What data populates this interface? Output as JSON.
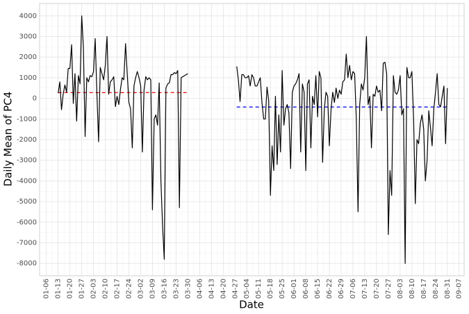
{
  "chart_data": {
    "type": "line",
    "x_label": "Date",
    "y_label": "Daily Mean of PC4",
    "x": [
      "01-13",
      "01-14",
      "01-15",
      "01-16",
      "01-17",
      "01-18",
      "01-19",
      "01-20",
      "01-21",
      "01-22",
      "01-23",
      "01-24",
      "01-25",
      "01-26",
      "01-27",
      "01-28",
      "01-29",
      "01-30",
      "01-31",
      "02-01",
      "02-02",
      "02-03",
      "02-04",
      "02-05",
      "02-06",
      "02-07",
      "02-08",
      "02-09",
      "02-10",
      "02-11",
      "02-12",
      "02-13",
      "02-14",
      "02-15",
      "02-16",
      "02-17",
      "02-18",
      "02-19",
      "02-20",
      "02-21",
      "02-22",
      "02-23",
      "02-24",
      "02-25",
      "02-26",
      "02-27",
      "02-28",
      "02-29",
      "03-01",
      "03-02",
      "03-03",
      "03-04",
      "03-05",
      "03-06",
      "03-07",
      "03-08",
      "03-09",
      "03-10",
      "03-11",
      "03-12",
      "03-13",
      "03-14",
      "03-15",
      "03-16",
      "03-17",
      "03-18",
      "03-19",
      "03-20",
      "03-21",
      "03-22",
      "03-23",
      "03-24",
      "03-25",
      "03-26",
      "03-27",
      "03-28",
      "03-29",
      "03-30",
      "04-14",
      "04-28",
      "04-29",
      "04-30",
      "05-01",
      "05-02",
      "05-03",
      "05-04",
      "05-05",
      "05-06",
      "05-07",
      "05-08",
      "05-09",
      "05-10",
      "05-11",
      "05-12",
      "05-13",
      "05-14",
      "05-15",
      "05-16",
      "05-17",
      "05-18",
      "05-19",
      "05-20",
      "05-21",
      "05-22",
      "05-23",
      "05-24",
      "05-25",
      "05-26",
      "05-27",
      "05-28",
      "05-29",
      "05-30",
      "05-31",
      "06-01",
      "06-02",
      "06-03",
      "06-04",
      "06-05",
      "06-06",
      "06-07",
      "06-08",
      "06-09",
      "06-10",
      "06-11",
      "06-12",
      "06-13",
      "06-14",
      "06-15",
      "06-16",
      "06-17",
      "06-18",
      "06-19",
      "06-20",
      "06-21",
      "06-22",
      "06-23",
      "06-24",
      "06-25",
      "06-26",
      "06-27",
      "06-28",
      "06-29",
      "06-30",
      "07-01",
      "07-02",
      "07-03",
      "07-04",
      "07-05",
      "07-06",
      "07-07",
      "07-08",
      "07-09",
      "07-10",
      "07-11",
      "07-12",
      "07-13",
      "07-14",
      "07-15",
      "07-16",
      "07-17",
      "07-18",
      "07-19",
      "07-20",
      "07-21",
      "07-22",
      "07-23",
      "07-24",
      "07-25",
      "07-26",
      "07-27",
      "07-28",
      "07-29",
      "07-30",
      "07-31",
      "08-01",
      "08-02",
      "08-03",
      "08-04",
      "08-05",
      "08-06",
      "08-07",
      "08-08",
      "08-09",
      "08-10",
      "08-11",
      "08-12",
      "08-13",
      "08-14",
      "08-15",
      "08-16",
      "08-17",
      "08-18",
      "08-19",
      "08-20",
      "08-21",
      "08-22",
      "08-23",
      "08-24",
      "08-25",
      "08-26",
      "08-27",
      "08-28",
      "08-29",
      "08-30",
      "08-31"
    ],
    "series": [
      {
        "color": "#000000",
        "values": [
          250,
          800,
          -550,
          200,
          650,
          300,
          1450,
          1450,
          2600,
          -250,
          1200,
          -1100,
          1100,
          700,
          4000,
          2500,
          -1850,
          1000,
          800,
          1100,
          1050,
          1300,
          2900,
          300,
          -2100,
          1500,
          1200,
          900,
          1600,
          3000,
          200,
          800,
          900,
          1050,
          -400,
          100,
          -300,
          450,
          1000,
          900,
          2650,
          1200,
          -200,
          -500,
          -2400,
          600,
          1000,
          1300,
          1000,
          600,
          -2600,
          400,
          1050,
          900,
          1000,
          900,
          -5400,
          -1000,
          -800,
          -1300,
          750,
          -4000,
          -6200,
          -7800,
          500,
          700,
          750,
          1150,
          1150,
          1250,
          1200,
          1350,
          -5300,
          1000,
          1050,
          1100,
          1150,
          1200,
          null,
          1550,
          900,
          -150,
          1150,
          1150,
          1000,
          1000,
          1100,
          600,
          1150,
          1000,
          600,
          600,
          800,
          1000,
          -200,
          -1000,
          -1000,
          550,
          -100,
          -4700,
          -2300,
          -3500,
          100,
          -3200,
          -800,
          -2600,
          1350,
          -1300,
          -500,
          -300,
          -700,
          -3400,
          300,
          600,
          700,
          900,
          1200,
          -2600,
          700,
          300,
          -3500,
          700,
          900,
          -2400,
          100,
          -300,
          1100,
          -900,
          1300,
          1000,
          -3100,
          -500,
          300,
          100,
          -2300,
          -500,
          300,
          -200,
          500,
          0,
          400,
          200,
          800,
          900,
          2150,
          1000,
          1600,
          900,
          1300,
          1200,
          -1000,
          -5500,
          -300,
          700,
          400,
          1000,
          3000,
          -300,
          100,
          -2400,
          200,
          100,
          600,
          300,
          400,
          -600,
          1700,
          1750,
          1200,
          -6600,
          -3500,
          -4700,
          1100,
          300,
          200,
          400,
          1100,
          -800,
          -500,
          -8000,
          1500,
          1000,
          1000,
          1300,
          -1000,
          -5100,
          -2000,
          -2200,
          -1200,
          -800,
          -1500,
          -4000,
          -3000,
          -600,
          -1400,
          -2300,
          -500,
          300,
          1200,
          -300,
          -400,
          100,
          600,
          -2200,
          500
        ]
      }
    ],
    "reference_lines": [
      {
        "value": 280,
        "start": "01-13",
        "end": "03-30",
        "color": "#e41a1c"
      },
      {
        "value": -420,
        "start": "04-28",
        "end": "08-31",
        "color": "#1010e0"
      }
    ],
    "xlim": [
      "01-02",
      "09-10"
    ],
    "xticks": [
      "01-06",
      "01-13",
      "01-20",
      "01-27",
      "02-03",
      "02-10",
      "02-17",
      "02-24",
      "03-02",
      "03-09",
      "03-16",
      "03-23",
      "03-30",
      "04-06",
      "04-13",
      "04-20",
      "04-27",
      "05-04",
      "05-11",
      "05-18",
      "05-25",
      "06-01",
      "06-08",
      "06-15",
      "06-22",
      "06-29",
      "07-06",
      "07-13",
      "07-20",
      "07-27",
      "08-03",
      "08-10",
      "08-17",
      "08-24",
      "08-31",
      "09-07"
    ],
    "ylim": [
      -8600,
      4600
    ],
    "yticks": [
      -8000,
      -7000,
      -6000,
      -5000,
      -4000,
      -3000,
      -2000,
      -1000,
      0,
      1000,
      2000,
      3000,
      4000
    ],
    "grid": true
  }
}
